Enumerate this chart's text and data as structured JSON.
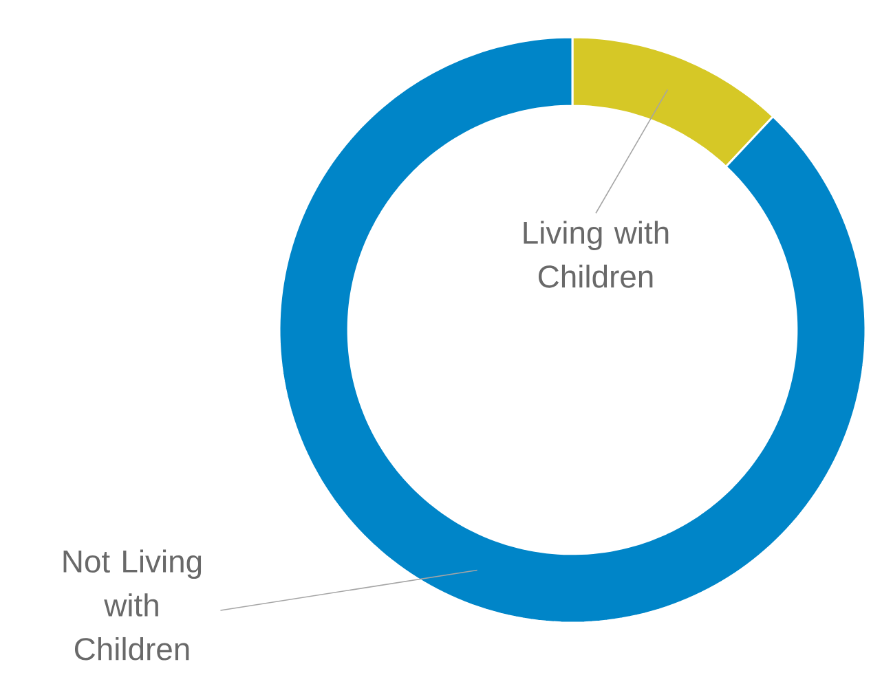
{
  "chart_data": {
    "type": "donut",
    "categories": [
      "Living with Children",
      "Not Living with Children"
    ],
    "values": [
      12,
      88
    ],
    "colors": [
      "#d6c826",
      "#0085c8"
    ]
  }
}
